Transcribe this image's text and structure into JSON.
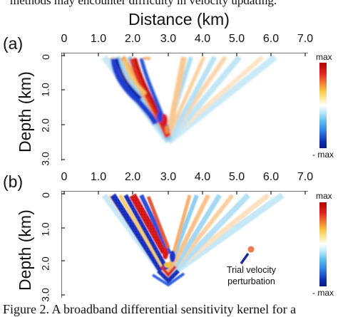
{
  "top_text": "methods may encounter difficulty in velocity updating.",
  "x_axis_title": "Distance (km)",
  "y_axis_title": "Depth (km)",
  "panels": [
    {
      "label": "(a)",
      "x_ticks": [
        "0",
        "1.0",
        "2.0",
        "3.0",
        "4.0",
        "5.0",
        "6.0",
        "7.0"
      ],
      "y_ticks": [
        "0",
        "1.0",
        "2.0",
        "3.0"
      ],
      "colorbar": {
        "max_label": "max",
        "min_label": "- max"
      }
    },
    {
      "label": "(b)",
      "x_ticks": [
        "0",
        "1.0",
        "2.0",
        "3.0",
        "4.0",
        "5.0",
        "6.0",
        "7.0"
      ],
      "y_ticks": [
        "0",
        "1.0",
        "2.0",
        "3.0"
      ],
      "colorbar": {
        "max_label": "max",
        "min_label": "- max"
      },
      "annotation_line1": "Trial velocity",
      "annotation_line2": "perturbation"
    }
  ],
  "caption": "Figure 2. A broadband differential sensitivity kernel for a",
  "colors": {
    "positive": "#d62020",
    "negative": "#1030c0",
    "light_positive": "#f2b070",
    "light_negative": "#9fd8f0",
    "perturbation_dot": "#f07a50",
    "perturbation_line": "#1a2a9a"
  }
}
